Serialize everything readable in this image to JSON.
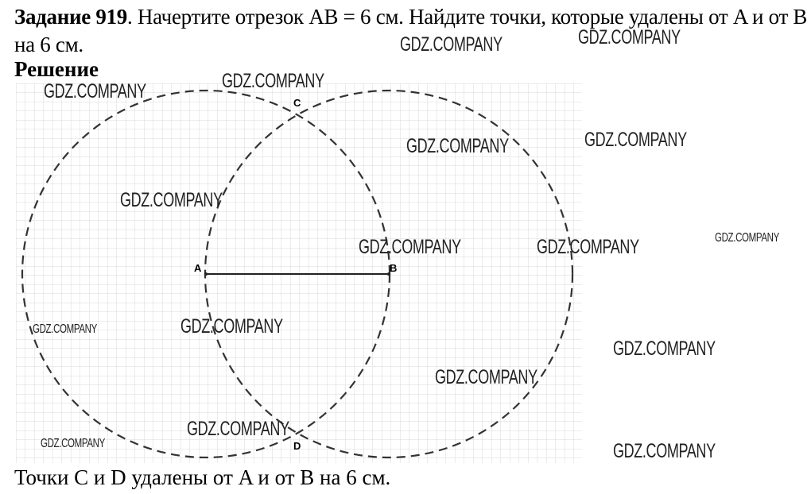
{
  "task": {
    "number_label": "Задание 919",
    "text": ". Начертите отрезок AB = 6 см. Найдите точки, которые удалены от A и от B на 6 см."
  },
  "solution_heading": "Решение",
  "figure": {
    "points": {
      "A": "A",
      "B": "B",
      "C": "C",
      "D": "D"
    },
    "segment_length_label": "AB = 6 см",
    "line_color": "#333333",
    "grid_color": "#d9d9d9"
  },
  "answer": "Точки C и D удалены от A и от B на 6 см.",
  "watermark": "GDZ.COMPANY"
}
